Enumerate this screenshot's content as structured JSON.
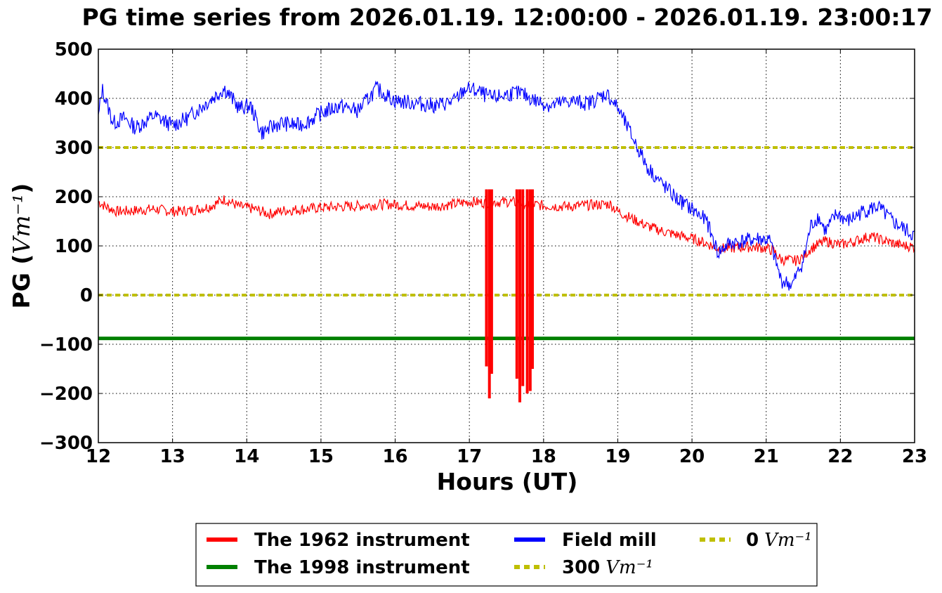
{
  "chart_data": {
    "type": "line",
    "title": "PG time series from 2026.01.19. 12:00:00 - 2026.01.19. 23:00:17",
    "xlabel": "Hours (UT)",
    "ylabel_prefix": "PG (",
    "ylabel_unit": "Vm⁻¹",
    "ylabel_suffix": ")",
    "xlim": [
      12,
      23
    ],
    "ylim": [
      -300,
      500
    ],
    "xticks": [
      12,
      13,
      14,
      15,
      16,
      17,
      18,
      19,
      20,
      21,
      22,
      23
    ],
    "yticks": [
      -300,
      -200,
      -100,
      0,
      100,
      200,
      300,
      400,
      500
    ],
    "ytick_labels": [
      "−300",
      "−200",
      "−100",
      "0",
      "100",
      "200",
      "300",
      "400",
      "500"
    ],
    "grid": true,
    "legend_placement": "below",
    "series": [
      {
        "name": "The 1962 instrument",
        "color": "#ff0000",
        "x": [
          12.0,
          12.1,
          12.25,
          12.5,
          12.75,
          13.0,
          13.25,
          13.5,
          13.7,
          13.9,
          14.1,
          14.3,
          14.5,
          14.8,
          15.0,
          15.3,
          15.6,
          15.9,
          16.2,
          16.5,
          16.8,
          17.0,
          17.2,
          17.5,
          17.8,
          18.0,
          18.3,
          18.6,
          18.9,
          19.0,
          19.2,
          19.4,
          19.6,
          19.8,
          20.0,
          20.2,
          20.35,
          20.5,
          20.7,
          20.9,
          21.0,
          21.1,
          21.2,
          21.4,
          21.5,
          21.6,
          21.8,
          22.0,
          22.2,
          22.4,
          22.6,
          22.8,
          23.0
        ],
        "values": [
          190,
          180,
          170,
          172,
          175,
          170,
          172,
          180,
          195,
          180,
          175,
          165,
          172,
          175,
          178,
          180,
          182,
          185,
          182,
          180,
          185,
          190,
          188,
          190,
          185,
          182,
          180,
          183,
          185,
          170,
          155,
          140,
          130,
          122,
          115,
          105,
          95,
          95,
          98,
          97,
          95,
          90,
          72,
          70,
          78,
          95,
          110,
          102,
          110,
          120,
          110,
          102,
          98
        ],
        "spikes": [
          {
            "x": 17.23,
            "min": -145
          },
          {
            "x": 17.27,
            "min": -210
          },
          {
            "x": 17.3,
            "min": -160
          },
          {
            "x": 17.64,
            "min": -170
          },
          {
            "x": 17.68,
            "min": -218
          },
          {
            "x": 17.72,
            "min": -185
          },
          {
            "x": 17.78,
            "min": -200
          },
          {
            "x": 17.82,
            "min": -195
          },
          {
            "x": 17.85,
            "min": -150
          }
        ]
      },
      {
        "name": "The 1998 instrument",
        "color": "#008000",
        "x": [
          12,
          23
        ],
        "values": [
          -88,
          -88
        ]
      },
      {
        "name": "Field mill",
        "color": "#0000ff",
        "x": [
          12.0,
          12.05,
          12.2,
          12.35,
          12.5,
          12.75,
          13.0,
          13.2,
          13.45,
          13.7,
          13.9,
          14.05,
          14.2,
          14.45,
          14.7,
          14.85,
          15.0,
          15.25,
          15.5,
          15.75,
          16.0,
          16.3,
          16.55,
          16.8,
          16.95,
          17.1,
          17.3,
          17.55,
          17.7,
          17.9,
          18.1,
          18.35,
          18.6,
          18.85,
          19.0,
          19.2,
          19.4,
          19.6,
          19.8,
          20.0,
          20.2,
          20.35,
          20.5,
          20.7,
          20.9,
          21.05,
          21.2,
          21.35,
          21.5,
          21.6,
          21.7,
          21.8,
          21.95,
          22.1,
          22.3,
          22.5,
          22.7,
          22.9,
          23.0
        ],
        "values": [
          360,
          420,
          350,
          360,
          340,
          365,
          345,
          360,
          390,
          420,
          380,
          385,
          330,
          350,
          345,
          355,
          370,
          385,
          375,
          420,
          395,
          390,
          385,
          395,
          420,
          415,
          400,
          410,
          410,
          395,
          385,
          395,
          390,
          410,
          380,
          320,
          260,
          225,
          195,
          175,
          150,
          85,
          105,
          110,
          115,
          110,
          30,
          20,
          70,
          140,
          160,
          130,
          165,
          150,
          170,
          180,
          150,
          130,
          120
        ]
      },
      {
        "name": "300",
        "unit": "Vm⁻¹",
        "color": "#bfbf00",
        "dashed": true,
        "x": [
          12,
          23
        ],
        "values": [
          300,
          300
        ]
      },
      {
        "name": "0",
        "unit": "Vm⁻¹",
        "color": "#bfbf00",
        "dashed": true,
        "x": [
          12,
          23
        ],
        "values": [
          0,
          0
        ]
      }
    ]
  }
}
